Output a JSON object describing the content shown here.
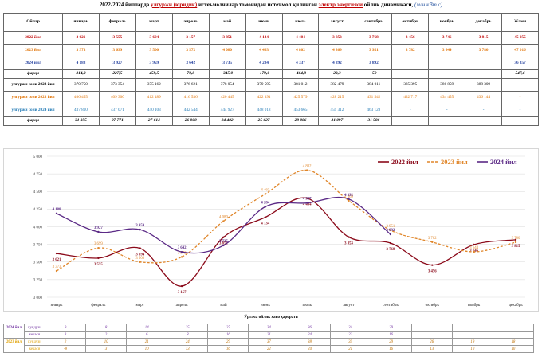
{
  "title": {
    "prefix": "2022-2024 йилларда",
    "highlight1": "улгуржи (юридик)",
    "middle": "истеъмолчилар томонидан истеъмол қилинган",
    "highlight2": "электр энергияси",
    "suffix": "ойлик динамикаси,",
    "unit": "(млн.кВт.с)"
  },
  "table": {
    "corner": "Ойлар",
    "months": [
      "январь",
      "февраль",
      "март",
      "апрель",
      "май",
      "июнь",
      "июль",
      "август",
      "сентябрь",
      "октябрь",
      "ноябрь",
      "декабрь"
    ],
    "total_label": "Жами",
    "rows": [
      {
        "label": "2022 йил",
        "cls": "c2022",
        "values": [
          "3 621",
          "3 555",
          "3 694",
          "3 157",
          "3 851",
          "4 134",
          "4 404",
          "3 853",
          "3 768",
          "3 456",
          "3 746",
          "3 815"
        ],
        "total": "45 055"
      },
      {
        "label": "2023 йил",
        "cls": "c2023",
        "values": [
          "3 373",
          "3 699",
          "3 500",
          "3 572",
          "4 080",
          "4 463",
          "4 802",
          "4 369",
          "3 951",
          "3 782",
          "3 644",
          "3 780"
        ],
        "total": "47 016"
      },
      {
        "label": "2024 йил",
        "cls": "c2024",
        "values": [
          "4 188",
          "3 927",
          "3 959",
          "3 642",
          "3 735",
          "4 284",
          "4 337",
          "4 392",
          "3 892",
          "",
          "",
          ""
        ],
        "total": "36 357"
      },
      {
        "label": "фарқи",
        "cls": "diff",
        "values": [
          "814,3",
          "227,5",
          "459,5",
          "70,8",
          "-345,0",
          "-179,0",
          "-464,8",
          "23,3",
          "-59",
          "",
          "",
          ""
        ],
        "total": "547,6"
      },
      {
        "label": "улгуржи сони 2022 йил",
        "cls": "cons k22",
        "values": [
          "370 750",
          "373 354",
          "375 162",
          "376 621",
          "378 054",
          "379 595",
          "381 012",
          "382 479",
          "384 011",
          "385 395",
          "386 859",
          "388 309"
        ],
        "total": "-"
      },
      {
        "label": "улгуржи сони 2023 йил",
        "cls": "cons k23",
        "values": [
          "406 455",
          "409 300",
          "412 489",
          "416 536",
          "420 445",
          "422 391",
          "425 579",
          "428 215",
          "431 542",
          "432 717",
          "434 455",
          "436 144"
        ],
        "total": "-"
      },
      {
        "label": "улгуржи сони 2024 йил",
        "cls": "cons k24",
        "values": [
          "437 810",
          "437 071",
          "440 103",
          "442 544",
          "444 927",
          "448 018",
          "453 665",
          "459 312",
          "463 128",
          "-",
          "-",
          "-"
        ],
        "total": "-"
      },
      {
        "label": "фарқи",
        "cls": "diff",
        "values": [
          "31 355",
          "27 771",
          "27 614",
          "26 008",
          "24 482",
          "25 627",
          "28 086",
          "31 097",
          "31 586",
          "",
          "",
          ""
        ],
        "total": ""
      }
    ]
  },
  "chart_data": {
    "type": "line",
    "categories": [
      "январь",
      "февраль",
      "март",
      "апрель",
      "май",
      "июнь",
      "июль",
      "август",
      "сентябрь",
      "октябрь",
      "ноябрь",
      "декабрь"
    ],
    "ylim": [
      3000,
      5000
    ],
    "yticks": [
      "3 000",
      "3 250",
      "3 500",
      "3 750",
      "4 000",
      "4 250",
      "4 500",
      "4 750",
      "5 000"
    ],
    "series": [
      {
        "name": "2022 йил",
        "color": "#8b0a1a",
        "dashed": false,
        "values": [
          3621,
          3555,
          3694,
          3157,
          3851,
          4134,
          4404,
          3853,
          3768,
          3456,
          3746,
          3815
        ],
        "labels": [
          "3 621",
          "3 555",
          "3 694",
          "3 157",
          "3 851",
          "4 134",
          "4 404",
          "3 853",
          "3 768",
          "3 456",
          "3 746",
          "3 815"
        ]
      },
      {
        "name": "2023 йил",
        "color": "#e0862a",
        "dashed": true,
        "values": [
          3373,
          3699,
          3500,
          3572,
          4080,
          4463,
          4802,
          4369,
          3951,
          3782,
          3644,
          3780
        ],
        "labels": [
          "3 373",
          "3 699",
          "3 500",
          "3 572",
          "4 080",
          "4 463",
          "4 802",
          "4 369",
          "3 951",
          "3 782",
          "3 644",
          "3 780"
        ]
      },
      {
        "name": "2024 йил",
        "color": "#5b2a86",
        "dashed": false,
        "values": [
          4188,
          3927,
          3959,
          3642,
          3735,
          4284,
          4337,
          4392,
          3892,
          null,
          null,
          null
        ],
        "labels": [
          "4 188",
          "3 927",
          "3 959",
          "3 642",
          "3 735",
          "4 284",
          "4 337",
          "4 392",
          "3 892",
          "",
          "",
          ""
        ]
      }
    ]
  },
  "weather": {
    "title": "Ўртача ойлик ҳаво ҳарорати",
    "rows": [
      {
        "year": "2024 йил",
        "part": "кундузи",
        "cls": "w24",
        "values": [
          "9",
          "8",
          "14",
          "25",
          "27",
          "34",
          "36",
          "31",
          "29",
          "",
          "",
          ""
        ]
      },
      {
        "year": "",
        "part": "кечаси",
        "cls": "w24",
        "values": [
          "3",
          "2",
          "6",
          "8",
          "16",
          "21",
          "24",
          "22",
          "16",
          "",
          "",
          ""
        ]
      },
      {
        "year": "2023 йил",
        "part": "кундузи",
        "cls": "w23",
        "values": [
          "2",
          "10",
          "21",
          "24",
          "29",
          "37",
          "38",
          "35",
          "29",
          "26",
          "19",
          "18"
        ]
      },
      {
        "year": "",
        "part": "кечаси",
        "cls": "w23",
        "values": [
          "-8",
          "3",
          "10",
          "13",
          "16",
          "22",
          "24",
          "21",
          "16",
          "13",
          "10",
          "10"
        ]
      }
    ]
  }
}
